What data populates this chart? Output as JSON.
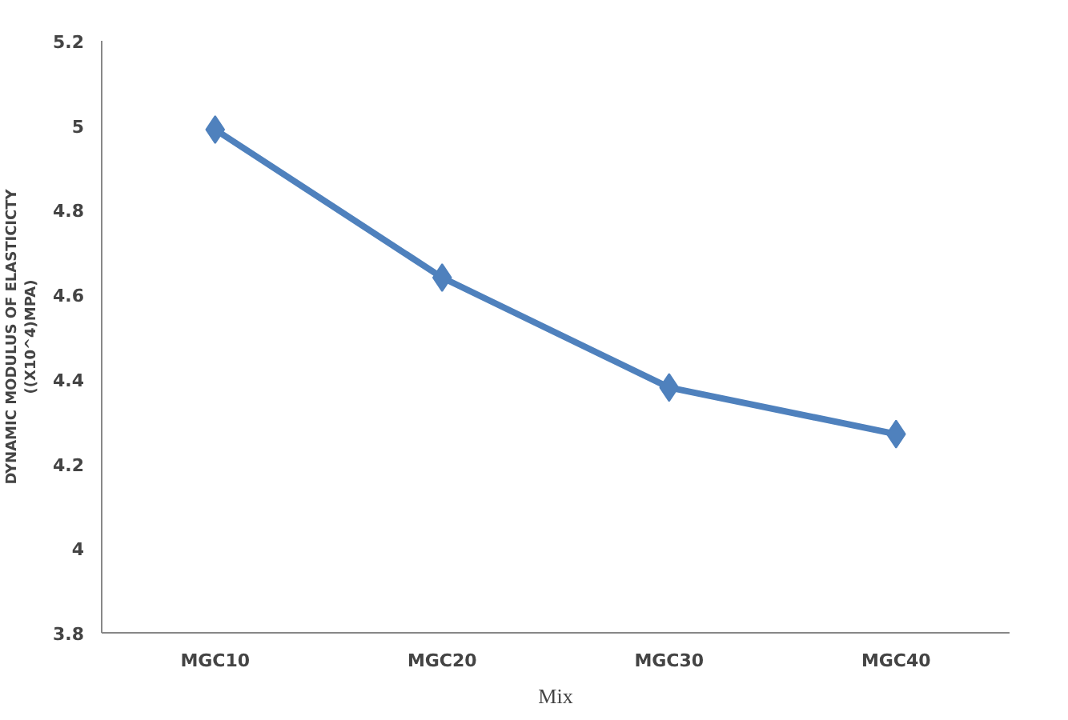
{
  "chart_data": {
    "type": "line",
    "xlabel": "Mix",
    "ylabel": "DYNAMIC MODULUS OF ELASTICICTY\n((X10^4)MPA)",
    "categories": [
      "MGC10",
      "MGC20",
      "MGC30",
      "MGC40"
    ],
    "series": [
      {
        "color": "#4f81bd",
        "values": [
          4.99,
          4.64,
          4.38,
          4.27
        ]
      }
    ],
    "ylim": [
      3.8,
      5.2
    ],
    "yticks": [
      {
        "value": 3.8,
        "label": "3.8"
      },
      {
        "value": 4,
        "label": "4"
      },
      {
        "value": 4.2,
        "label": "4.2"
      },
      {
        "value": 4.4,
        "label": "4.4"
      },
      {
        "value": 4.6,
        "label": "4.6"
      },
      {
        "value": 4.8,
        "label": "4.8"
      },
      {
        "value": 5,
        "label": "5"
      },
      {
        "value": 5.2,
        "label": "5.2"
      }
    ],
    "grid": false,
    "marker": "diamond",
    "line_style": "solid"
  }
}
